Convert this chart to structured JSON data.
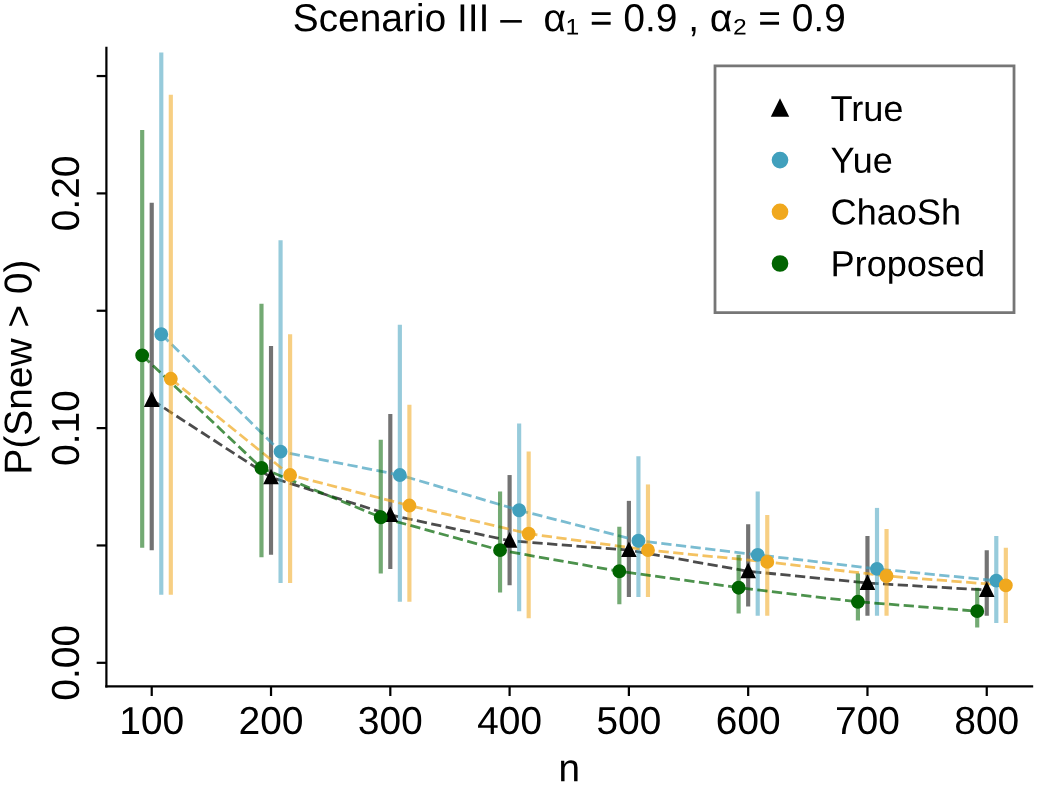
{
  "chart_data": {
    "type": "line",
    "title": "Scenario III –  α₁ = 0.9 , α₂ = 0.9",
    "xlabel": "n",
    "ylabel": "P(Snew > 0)",
    "xlim": [
      62,
      838
    ],
    "ylim": [
      -0.01,
      0.262
    ],
    "xticks": [
      100,
      200,
      300,
      400,
      500,
      600,
      700,
      800
    ],
    "yticks": [
      {
        "value": 0,
        "label": "0.00"
      },
      {
        "value": 0.05,
        "label": null
      },
      {
        "value": 0.1,
        "label": "0.10"
      },
      {
        "value": 0.15,
        "label": null
      },
      {
        "value": 0.2,
        "label": "0.20"
      },
      {
        "value": 0.25,
        "label": null
      }
    ],
    "grid": false,
    "legend": "top right",
    "line_style": "dashed",
    "series": [
      {
        "name": "True",
        "color": "#000000",
        "marker": "triangle",
        "x": [
          100,
          200,
          300,
          400,
          500,
          600,
          700,
          800
        ],
        "values": [
          0.112,
          0.079,
          0.063,
          0.052,
          0.048,
          0.039,
          0.034,
          0.031
        ],
        "errors": [
          [
            0.048,
            0.196
          ],
          [
            0.046,
            0.135
          ],
          [
            0.04,
            0.106
          ],
          [
            0.033,
            0.08
          ],
          [
            0.028,
            0.069
          ],
          [
            0.024,
            0.059
          ],
          [
            0.02,
            0.054
          ],
          [
            0.02,
            0.048
          ]
        ]
      },
      {
        "name": "Yue",
        "color": "#41a0bd",
        "marker": "circle",
        "x": [
          108,
          208,
          308,
          408,
          508,
          608,
          708,
          808
        ],
        "values": [
          0.14,
          0.09,
          0.08,
          0.065,
          0.052,
          0.046,
          0.04,
          0.035
        ],
        "errors": [
          [
            0.029,
            0.26
          ],
          [
            0.034,
            0.18
          ],
          [
            0.026,
            0.144
          ],
          [
            0.022,
            0.102
          ],
          [
            0.028,
            0.088
          ],
          [
            0.02,
            0.073
          ],
          [
            0.02,
            0.066
          ],
          [
            0.017,
            0.054
          ]
        ]
      },
      {
        "name": "ChaoSh",
        "color": "#f0a81e",
        "marker": "circle",
        "x": [
          116,
          216,
          316,
          416,
          516,
          616,
          716,
          816
        ],
        "values": [
          0.121,
          0.08,
          0.067,
          0.055,
          0.048,
          0.043,
          0.037,
          0.033
        ],
        "errors": [
          [
            0.029,
            0.242
          ],
          [
            0.034,
            0.14
          ],
          [
            0.026,
            0.11
          ],
          [
            0.019,
            0.09
          ],
          [
            0.028,
            0.076
          ],
          [
            0.02,
            0.063
          ],
          [
            0.02,
            0.057
          ],
          [
            0.017,
            0.049
          ]
        ]
      },
      {
        "name": "Proposed",
        "color": "#006400",
        "marker": "circle",
        "x": [
          92,
          192,
          292,
          392,
          492,
          592,
          692,
          792
        ],
        "values": [
          0.131,
          0.083,
          0.062,
          0.048,
          0.039,
          0.032,
          0.026,
          0.022
        ],
        "errors": [
          [
            0.049,
            0.227
          ],
          [
            0.045,
            0.153
          ],
          [
            0.038,
            0.095
          ],
          [
            0.03,
            0.073
          ],
          [
            0.025,
            0.058
          ],
          [
            0.021,
            0.046
          ],
          [
            0.018,
            0.038
          ],
          [
            0.015,
            0.032
          ]
        ]
      }
    ]
  }
}
